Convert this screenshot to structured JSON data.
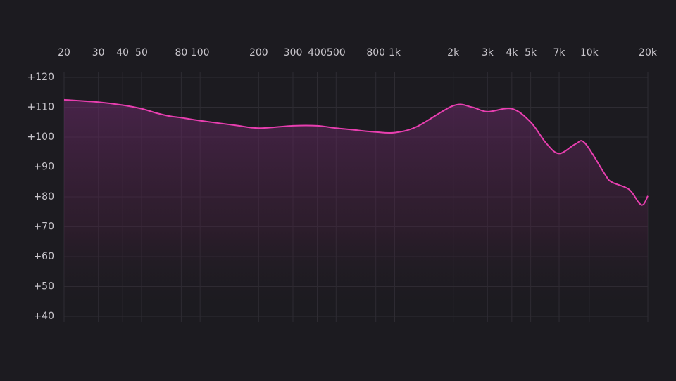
{
  "chart_data": {
    "type": "line",
    "x_scale": "log",
    "color": "#e83fb0",
    "grid": true,
    "x": [
      20,
      30,
      40,
      50,
      60,
      70,
      80,
      100,
      150,
      200,
      300,
      400,
      500,
      600,
      800,
      1000,
      1300,
      2000,
      2500,
      3000,
      4000,
      5000,
      6000,
      7000,
      8500,
      9500,
      12000,
      13000,
      16000,
      18000,
      19000,
      20000
    ],
    "values": [
      112.5,
      111.7,
      110.7,
      109.5,
      108,
      107,
      106.5,
      105.5,
      104,
      103,
      103.8,
      103.8,
      103,
      102.5,
      101.7,
      101.5,
      103.5,
      110.5,
      110,
      108.5,
      109.5,
      105,
      98,
      94.5,
      97.7,
      98,
      87.7,
      85,
      82.5,
      78,
      77.5,
      80.3
    ],
    "xlim": [
      20,
      20000
    ],
    "xticks": [
      20,
      30,
      40,
      50,
      80,
      100,
      200,
      300,
      400,
      500,
      800,
      {
        "value": 1000,
        "label": "1k"
      },
      {
        "value": 2000,
        "label": "2k"
      },
      {
        "value": 3000,
        "label": "3k"
      },
      {
        "value": 4000,
        "label": "4k"
      },
      {
        "value": 5000,
        "label": "5k"
      },
      {
        "value": 7000,
        "label": "7k"
      },
      {
        "value": 10000,
        "label": "10k"
      },
      {
        "value": 20000,
        "label": "20k"
      }
    ],
    "ylim": [
      40,
      120
    ],
    "yticks": [
      {
        "value": 120,
        "label": "+120"
      },
      {
        "value": 110,
        "label": "+110"
      },
      {
        "value": 100,
        "label": "+100"
      },
      {
        "value": 90,
        "label": "+90"
      },
      {
        "value": 80,
        "label": "+80"
      },
      {
        "value": 70,
        "label": "+70"
      },
      {
        "value": 60,
        "label": "+60"
      },
      {
        "value": 50,
        "label": "+50"
      },
      {
        "value": 40,
        "label": "+40"
      }
    ]
  }
}
